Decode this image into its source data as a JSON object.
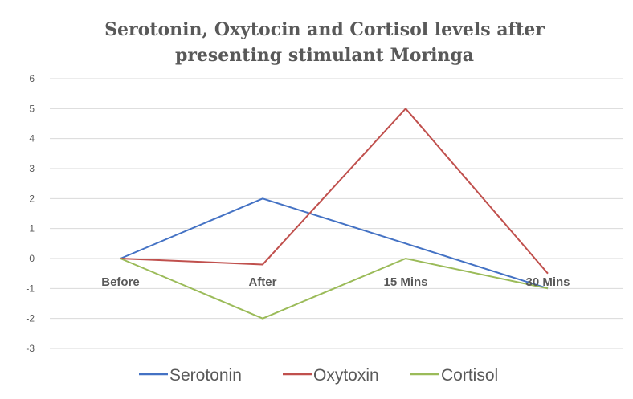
{
  "chart_data": {
    "type": "line",
    "title": "Serotonin, Oxytocin and Cortisol levels after presenting stimulant Moringa",
    "title_lines": [
      "Serotonin, Oxytocin and Cortisol levels after",
      "presenting stimulant Moringa"
    ],
    "categories": [
      "Before",
      "After",
      "15 Mins",
      "30 Mins"
    ],
    "series": [
      {
        "name": "Serotonin",
        "values": [
          0,
          2,
          0.5,
          -1
        ],
        "color": "#4472c4"
      },
      {
        "name": "Oxytoxin",
        "values": [
          0,
          -0.2,
          5,
          -0.5
        ],
        "color": "#c0504d"
      },
      {
        "name": "Cortisol",
        "values": [
          0,
          -2,
          0,
          -1
        ],
        "color": "#9bbb59"
      }
    ],
    "ylim": [
      -3,
      6
    ],
    "yticks": [
      6,
      5,
      4,
      3,
      2,
      1,
      0,
      -1,
      -2,
      -3
    ],
    "grid": true,
    "legend_position": "bottom",
    "xlabel": "",
    "ylabel": ""
  }
}
